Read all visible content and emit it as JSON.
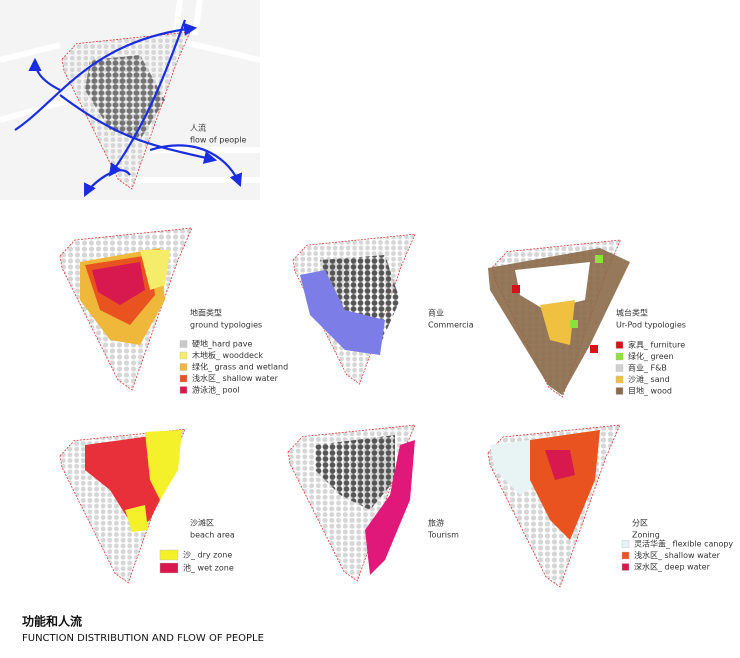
{
  "title": "功能和人流",
  "subtitle": "FUNCTION DISTRIBUTION AND FLOW OF PEOPLE",
  "panels": [
    {
      "label": "人流",
      "sublabel": "flow of people",
      "legend": []
    },
    {
      "label": "地面类型",
      "sublabel": "ground typologies",
      "legend": [
        {
          "text": "硬地_hard pave",
          "color": "#c8c8c8"
        },
        {
          "text": "木地板_ wooddeck",
          "color": "#f5ec6a"
        },
        {
          "text": "绿化_ grass and wetland",
          "color": "#f0b83a"
        },
        {
          "text": "浅水区_ shallow water",
          "color": "#e8531f"
        },
        {
          "text": "游泳池_ pool",
          "color": "#d7194f"
        }
      ]
    },
    {
      "label": "商业",
      "sublabel": "Commercia",
      "legend": []
    },
    {
      "label": "城台类型",
      "sublabel": "Ur-Pod typologies",
      "legend": [
        {
          "text": "家具_ furniture",
          "color": "#d4121a"
        },
        {
          "text": "绿化_ green",
          "color": "#8ee03a"
        },
        {
          "text": "商业_ F&B",
          "color": "#d0d0d0"
        },
        {
          "text": "沙滩_ sand",
          "color": "#f0c040"
        },
        {
          "text": "目地_ wood",
          "color": "#8a6a48"
        }
      ]
    },
    {
      "label": "沙滩区",
      "sublabel": "beach area",
      "legend": [
        {
          "text": "沙_ dry zone",
          "color": "#f4f02a"
        },
        {
          "text": "池_ wet zone",
          "color": "#d7194f"
        }
      ]
    },
    {
      "label": "旅游",
      "sublabel": "Tourism",
      "legend": []
    },
    {
      "label": "分区",
      "sublabel": "Zoning",
      "legend": [
        {
          "text": "灵活华盖_ flexible canopy",
          "color": "#e8f4f4"
        },
        {
          "text": "浅水区_ shallow water",
          "color": "#e8531f"
        },
        {
          "text": "深水区_ deep water",
          "color": "#d7194f"
        }
      ]
    }
  ]
}
